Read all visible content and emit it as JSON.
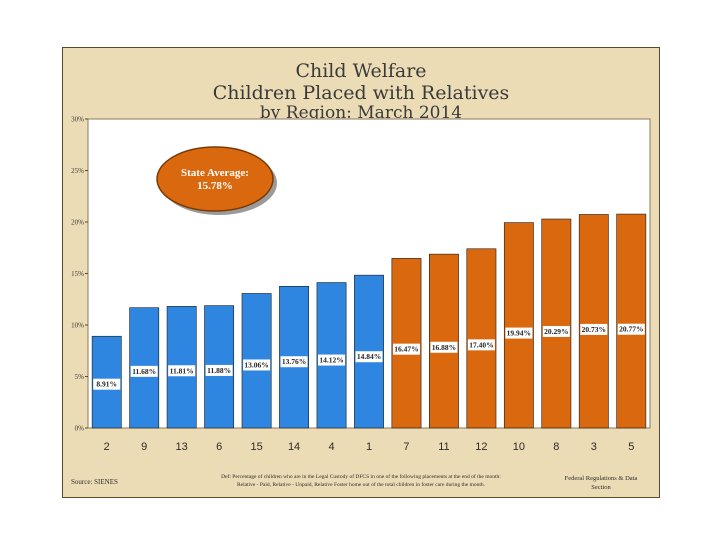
{
  "chart_data": {
    "type": "bar",
    "title": [
      "Child Welfare",
      "Children Placed with Relatives",
      "by Region: March 2014"
    ],
    "categories": [
      "2",
      "9",
      "13",
      "6",
      "15",
      "14",
      "4",
      "1",
      "7",
      "11",
      "12",
      "10",
      "8",
      "3",
      "5"
    ],
    "values": [
      8.91,
      11.68,
      11.81,
      11.88,
      13.06,
      13.76,
      14.12,
      14.84,
      16.47,
      16.88,
      17.4,
      19.94,
      20.29,
      20.73,
      20.77
    ],
    "data_labels": [
      "8.91%",
      "11.68%",
      "11.81%",
      "11.88%",
      "13.06%",
      "13.76%",
      "14.12%",
      "14.84%",
      "16.47%",
      "16.88%",
      "17.40%",
      "19.94%",
      "20.29%",
      "20.73%",
      "20.77%"
    ],
    "bar_colors": [
      "#2f86e0",
      "#2f86e0",
      "#2f86e0",
      "#2f86e0",
      "#2f86e0",
      "#2f86e0",
      "#2f86e0",
      "#2f86e0",
      "#d9680f",
      "#d9680f",
      "#d9680f",
      "#d9680f",
      "#d9680f",
      "#d9680f",
      "#d9680f"
    ],
    "ylim": [
      0,
      30
    ],
    "yticks": [
      0,
      5,
      10,
      15,
      20,
      25,
      30
    ],
    "ytick_labels": [
      "0%",
      "5%",
      "10%",
      "15%",
      "20%",
      "25%",
      "30%"
    ],
    "grid": false,
    "annotation": {
      "line1": "State Average:",
      "line2": "15.78%",
      "value": 15.78
    },
    "colors": {
      "background": "#ecdcb6",
      "plot_area": "#ffffff",
      "blue": "#2f86e0",
      "orange": "#d9680f",
      "label_box": "#ffffff"
    }
  },
  "footer": {
    "source": "Source: SIENES",
    "definition_line1": "Def: Percentage of children who are in the Legal Custody of DFCS in one of the following placements at the end of the month:",
    "definition_line2": "Relative - Paid, Relative - Unpaid, Relative Foster home out of the total children in foster care during the month.",
    "section_line1": "Federal Regulations & Data",
    "section_line2": "Section"
  }
}
